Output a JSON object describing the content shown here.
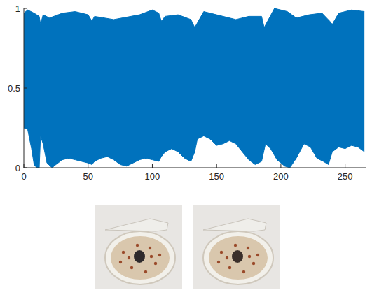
{
  "chart_data": {
    "type": "band",
    "xlim": [
      0,
      266
    ],
    "ylim": [
      0,
      1
    ],
    "xticks": [
      0,
      50,
      100,
      150,
      200,
      250
    ],
    "yticks": [
      0,
      0.5,
      1
    ],
    "grid": false,
    "color": "#0072bd",
    "series": [
      {
        "x": [
          0,
          3,
          8,
          12,
          13,
          15,
          20,
          30,
          40,
          50,
          53,
          55,
          70,
          90,
          100,
          105,
          107,
          110,
          120,
          130,
          133,
          140,
          150,
          165,
          175,
          185,
          187,
          195,
          205,
          212,
          222,
          232,
          238,
          240,
          245,
          255,
          265
        ],
        "values": [
          0.97,
          0.99,
          0.97,
          0.95,
          0.9,
          0.96,
          0.94,
          0.97,
          0.98,
          0.96,
          0.92,
          0.95,
          0.93,
          0.96,
          0.99,
          0.97,
          0.92,
          0.95,
          0.96,
          0.93,
          0.88,
          0.98,
          0.96,
          0.93,
          0.95,
          0.95,
          0.88,
          1.0,
          0.98,
          0.94,
          0.96,
          0.97,
          0.92,
          0.9,
          0.97,
          0.99,
          0.98
        ]
      },
      {
        "x": [
          0,
          3,
          6,
          8,
          10,
          12,
          13,
          15,
          18,
          22,
          25,
          30,
          35,
          40,
          45,
          50,
          53,
          55,
          60,
          65,
          70,
          75,
          80,
          85,
          90,
          95,
          100,
          105,
          107,
          110,
          115,
          120,
          125,
          130,
          133,
          135,
          140,
          145,
          150,
          155,
          160,
          165,
          170,
          175,
          180,
          185,
          188,
          192,
          197,
          203,
          207,
          212,
          218,
          223,
          228,
          233,
          237,
          240,
          245,
          250,
          255,
          260,
          265
        ],
        "values": [
          0.25,
          0.24,
          0.12,
          0.02,
          0.0,
          0.0,
          0.2,
          0.15,
          0.03,
          0.0,
          0.02,
          0.05,
          0.06,
          0.05,
          0.04,
          0.03,
          0.02,
          0.04,
          0.06,
          0.07,
          0.05,
          0.02,
          0.01,
          0.03,
          0.05,
          0.06,
          0.05,
          0.04,
          0.07,
          0.1,
          0.12,
          0.1,
          0.06,
          0.04,
          0.1,
          0.18,
          0.2,
          0.18,
          0.14,
          0.15,
          0.17,
          0.15,
          0.1,
          0.05,
          0.02,
          0.04,
          0.15,
          0.12,
          0.05,
          0.01,
          0.0,
          0.06,
          0.15,
          0.13,
          0.06,
          0.04,
          0.02,
          0.1,
          0.13,
          0.12,
          0.14,
          0.13,
          0.1
        ]
      }
    ]
  }
}
